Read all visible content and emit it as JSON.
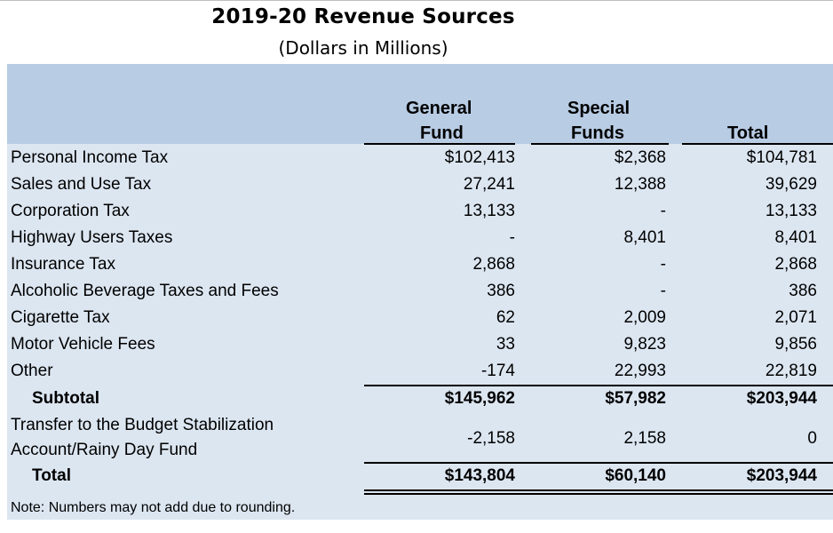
{
  "title": "2019-20 Revenue Sources",
  "subtitle": "(Dollars in Millions)",
  "columns": {
    "general_line1": "General",
    "general_line2": "Fund",
    "special_line1": "Special",
    "special_line2": "Funds",
    "total": "Total"
  },
  "rows": [
    {
      "label": "Personal Income Tax",
      "general": "$102,413",
      "special": "$2,368",
      "total": "$104,781"
    },
    {
      "label": "Sales and Use Tax",
      "general": "27,241",
      "special": "12,388",
      "total": "39,629"
    },
    {
      "label": "Corporation Tax",
      "general": "13,133",
      "special": "-",
      "total": "13,133"
    },
    {
      "label": "Highway Users Taxes",
      "general": "-",
      "special": "8,401",
      "total": "8,401"
    },
    {
      "label": "Insurance Tax",
      "general": "2,868",
      "special": "-",
      "total": "2,868"
    },
    {
      "label": "Alcoholic Beverage Taxes and Fees",
      "general": "386",
      "special": "-",
      "total": "386"
    },
    {
      "label": "Cigarette Tax",
      "general": "62",
      "special": "2,009",
      "total": "2,071"
    },
    {
      "label": "Motor Vehicle Fees",
      "general": "33",
      "special": "9,823",
      "total": "9,856"
    },
    {
      "label": "Other",
      "general": "-174",
      "special": "22,993",
      "total": "22,819"
    }
  ],
  "subtotal": {
    "label": "Subtotal",
    "general": "$145,962",
    "special": "$57,982",
    "total": "$203,944"
  },
  "transfer": {
    "label_line1": "Transfer to the Budget Stabilization",
    "label_line2": "Account/Rainy Day Fund",
    "general": "-2,158",
    "special": "2,158",
    "total": "0"
  },
  "total_row": {
    "label": "Total",
    "general": "$143,804",
    "special": "$60,140",
    "total": "$203,944"
  },
  "note": "Note: Numbers may not add due to rounding."
}
